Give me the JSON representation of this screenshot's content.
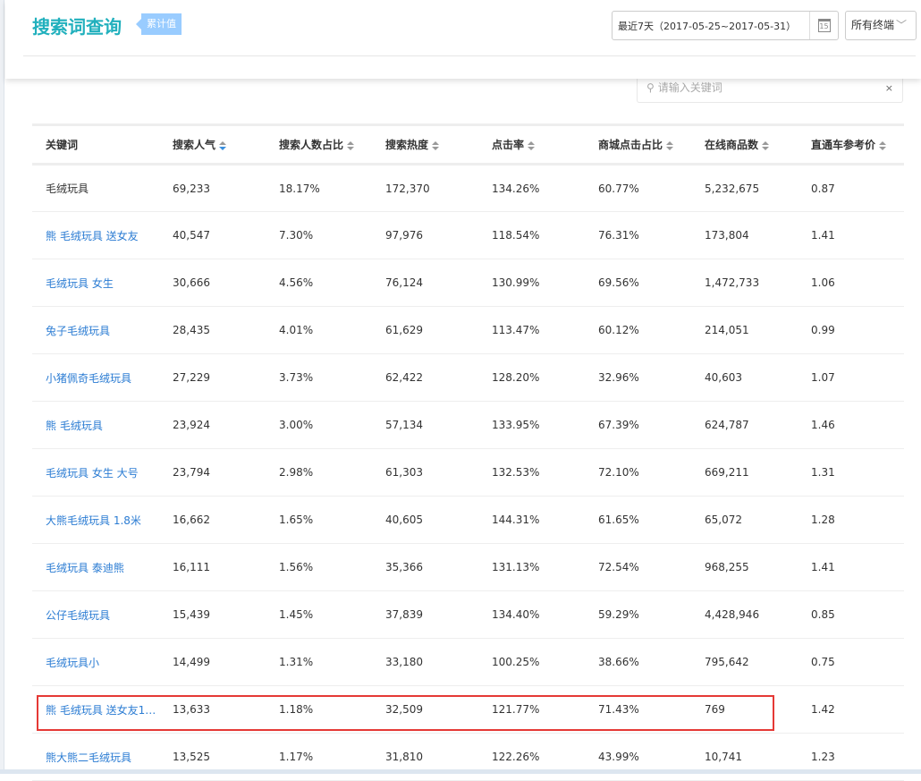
{
  "header": {
    "title": "搜索词查询",
    "badge": "累计值",
    "date_range": "最近7天（2017-05-25~2017-05-31）",
    "calendar_day": "15",
    "terminal": "所有终端"
  },
  "search": {
    "placeholder": "请输入关键词",
    "value": "",
    "clear": "×"
  },
  "table": {
    "columns": [
      "关键词",
      "搜索人气",
      "搜索人数占比",
      "搜索热度",
      "点击率",
      "商城点击占比",
      "在线商品数",
      "直通车参考价"
    ],
    "active_sort_column": "搜索人气",
    "rows": [
      [
        "毛绒玩具",
        "69,233",
        "18.17%",
        "172,370",
        "134.26%",
        "60.77%",
        "5,232,675",
        "0.87"
      ],
      [
        "熊 毛绒玩具 送女友",
        "40,547",
        "7.30%",
        "97,976",
        "118.54%",
        "76.31%",
        "173,804",
        "1.41"
      ],
      [
        "毛绒玩具 女生",
        "30,666",
        "4.56%",
        "76,124",
        "130.99%",
        "69.56%",
        "1,472,733",
        "1.06"
      ],
      [
        "兔子毛绒玩具",
        "28,435",
        "4.01%",
        "61,629",
        "113.47%",
        "60.12%",
        "214,051",
        "0.99"
      ],
      [
        "小猪佩奇毛绒玩具",
        "27,229",
        "3.73%",
        "62,422",
        "128.20%",
        "32.96%",
        "40,603",
        "1.07"
      ],
      [
        "熊 毛绒玩具",
        "23,924",
        "3.00%",
        "57,134",
        "133.95%",
        "67.39%",
        "624,787",
        "1.46"
      ],
      [
        "毛绒玩具 女生 大号",
        "23,794",
        "2.98%",
        "61,303",
        "132.53%",
        "72.10%",
        "669,211",
        "1.31"
      ],
      [
        "大熊毛绒玩具 1.8米",
        "16,662",
        "1.65%",
        "40,605",
        "144.31%",
        "61.65%",
        "65,072",
        "1.28"
      ],
      [
        "毛绒玩具 泰迪熊",
        "16,111",
        "1.56%",
        "35,366",
        "131.13%",
        "72.54%",
        "968,255",
        "1.41"
      ],
      [
        "公仔毛绒玩具",
        "15,439",
        "1.45%",
        "37,839",
        "134.40%",
        "59.29%",
        "4,428,946",
        "0.85"
      ],
      [
        "毛绒玩具小",
        "14,499",
        "1.31%",
        "33,180",
        "100.25%",
        "38.66%",
        "795,642",
        "0.75"
      ],
      [
        "熊 毛绒玩具 送女友1.8...",
        "13,633",
        "1.18%",
        "32,509",
        "121.77%",
        "71.43%",
        "769",
        "1.42"
      ],
      [
        "熊大熊二毛绒玩具",
        "13,525",
        "1.17%",
        "31,810",
        "122.26%",
        "43.99%",
        "10,741",
        "1.23"
      ]
    ],
    "highlighted_row": 11
  },
  "colors": {
    "title": "#21b0bd",
    "link": "#2b7cd3",
    "highlight": "#e53935",
    "badge": "#99ccff"
  }
}
